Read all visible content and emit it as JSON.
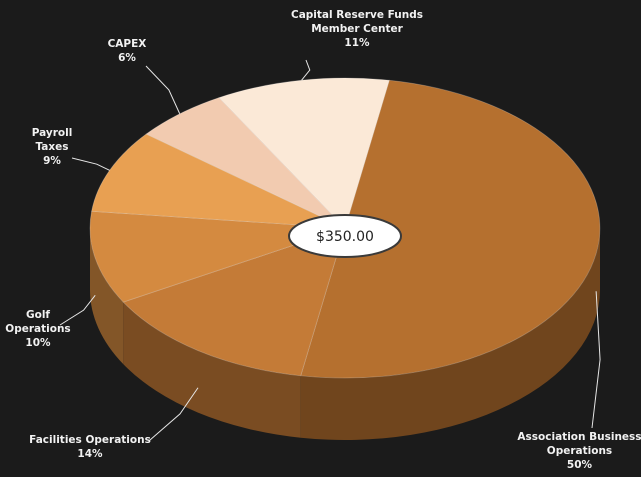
{
  "chart_data": {
    "type": "pie",
    "categories": [
      "Association Business Operations",
      "Facilities Operations",
      "Golf Operations",
      "Payroll Taxes",
      "CAPEX",
      "Capital Reserve Funds Member Center"
    ],
    "values": [
      50,
      14,
      10,
      9,
      6,
      11
    ],
    "value_labels": [
      "50%",
      "14%",
      "10%",
      "9%",
      "6%",
      "11%"
    ],
    "colors": [
      "#b5702f",
      "#c47b37",
      "#d48a40",
      "#e8a052",
      "#f2cbb0",
      "#fbe9d7"
    ],
    "center_label": "$350.00"
  }
}
